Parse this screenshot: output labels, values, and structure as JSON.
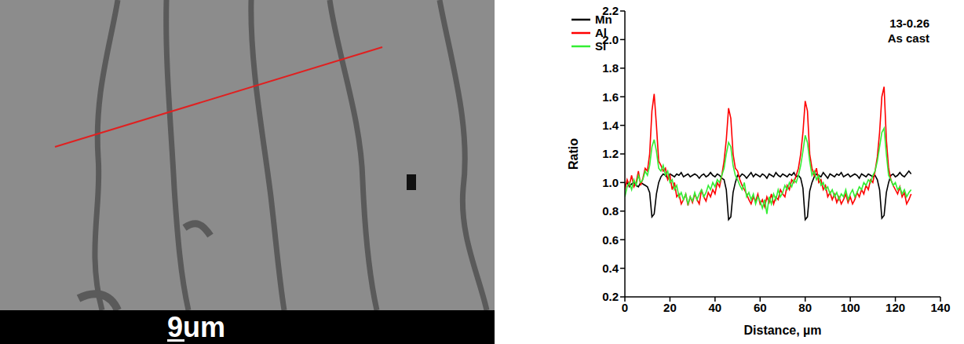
{
  "chart_data": {
    "type": "line",
    "x_label": "Distance, µm",
    "y_label": "Ratio",
    "annotations": [
      "13-0.26",
      "As cast"
    ],
    "legend": "upper left",
    "grid": false,
    "xlim": [
      0,
      140
    ],
    "xticks": [
      0,
      20,
      40,
      60,
      80,
      100,
      120,
      140
    ],
    "ylim": [
      0.2,
      2.2
    ],
    "yticks": [
      0.2,
      0.4,
      0.6,
      0.8,
      {
        "value": 1,
        "label": "1.0"
      },
      1.2,
      1.4,
      1.6,
      1.8,
      {
        "value": 2,
        "label": "2.0"
      },
      2.2
    ],
    "x": [
      0,
      1,
      2,
      3,
      4,
      5,
      6,
      7,
      8,
      9,
      10,
      11,
      12,
      13,
      14,
      15,
      16,
      17,
      18,
      19,
      20,
      21,
      22,
      23,
      24,
      25,
      26,
      27,
      28,
      29,
      30,
      31,
      32,
      33,
      34,
      35,
      36,
      37,
      38,
      39,
      40,
      41,
      42,
      43,
      44,
      45,
      46,
      47,
      48,
      49,
      50,
      51,
      52,
      53,
      54,
      55,
      56,
      57,
      58,
      59,
      60,
      61,
      62,
      63,
      64,
      65,
      66,
      67,
      68,
      69,
      70,
      71,
      72,
      73,
      74,
      75,
      76,
      77,
      78,
      79,
      80,
      81,
      82,
      83,
      84,
      85,
      86,
      87,
      88,
      89,
      90,
      91,
      92,
      93,
      94,
      95,
      96,
      97,
      98,
      99,
      100,
      101,
      102,
      103,
      104,
      105,
      106,
      107,
      108,
      109,
      110,
      111,
      112,
      113,
      114,
      115,
      116,
      117,
      118,
      119,
      120,
      121,
      122,
      123,
      124,
      125,
      126,
      127
    ],
    "series": [
      {
        "name": "Mn",
        "color": "#000000",
        "values": [
          0.98,
          1.0,
          0.97,
          0.99,
          1.0,
          0.98,
          0.97,
          1.0,
          0.99,
          0.98,
          0.97,
          0.93,
          0.76,
          0.78,
          0.92,
          1.0,
          1.04,
          1.06,
          1.05,
          1.03,
          1.06,
          1.05,
          1.04,
          1.06,
          1.05,
          1.07,
          1.04,
          1.05,
          1.06,
          1.04,
          1.05,
          1.06,
          1.05,
          1.03,
          1.05,
          1.06,
          1.04,
          1.05,
          1.07,
          1.05,
          1.04,
          1.06,
          1.05,
          1.03,
          1.02,
          0.95,
          0.74,
          0.76,
          0.93,
          1.0,
          1.05,
          1.04,
          1.06,
          1.05,
          1.03,
          1.05,
          1.07,
          1.04,
          1.06,
          1.05,
          1.04,
          1.06,
          1.05,
          1.03,
          1.06,
          1.05,
          1.04,
          1.07,
          1.05,
          1.04,
          1.06,
          1.05,
          1.04,
          1.06,
          1.05,
          1.07,
          1.04,
          1.05,
          1.03,
          0.96,
          0.74,
          0.76,
          0.94,
          1.0,
          1.04,
          1.06,
          1.05,
          1.04,
          1.07,
          1.05,
          1.03,
          1.06,
          1.05,
          1.04,
          1.06,
          1.05,
          1.07,
          1.04,
          1.05,
          1.06,
          1.04,
          1.05,
          1.06,
          1.05,
          1.03,
          1.06,
          1.05,
          1.04,
          1.06,
          1.05,
          1.04,
          1.05,
          1.02,
          0.95,
          0.75,
          0.77,
          0.93,
          1.0,
          1.05,
          1.06,
          1.04,
          1.05,
          1.07,
          1.05,
          1.04,
          1.06,
          1.08,
          1.06
        ]
      },
      {
        "name": "Al",
        "color": "#ff0000",
        "values": [
          0.95,
          1.02,
          0.98,
          1.05,
          0.97,
          1.0,
          1.08,
          0.98,
          1.03,
          1.1,
          1.08,
          1.2,
          1.5,
          1.62,
          1.4,
          1.15,
          1.12,
          1.08,
          1.1,
          1.02,
          1.05,
          0.95,
          1.0,
          0.9,
          0.92,
          0.85,
          0.88,
          0.92,
          0.84,
          0.9,
          0.86,
          0.92,
          0.88,
          0.85,
          0.95,
          0.9,
          0.87,
          0.93,
          0.9,
          0.95,
          0.92,
          1.0,
          0.97,
          1.05,
          1.15,
          1.3,
          1.52,
          1.45,
          1.2,
          1.1,
          1.08,
          1.02,
          0.98,
          0.95,
          0.92,
          0.88,
          0.85,
          0.9,
          0.87,
          0.92,
          0.85,
          0.88,
          0.83,
          0.9,
          0.86,
          0.92,
          0.85,
          0.9,
          0.88,
          0.95,
          0.92,
          0.9,
          0.98,
          0.95,
          1.02,
          1.0,
          1.05,
          1.1,
          1.2,
          1.35,
          1.57,
          1.5,
          1.2,
          1.1,
          1.05,
          1.1,
          1.0,
          1.02,
          0.95,
          0.98,
          0.9,
          0.93,
          0.88,
          0.92,
          0.86,
          0.9,
          0.85,
          0.88,
          0.92,
          0.86,
          0.9,
          0.85,
          0.88,
          0.93,
          0.9,
          0.95,
          0.92,
          0.98,
          0.95,
          1.02,
          1.0,
          1.08,
          1.18,
          1.35,
          1.6,
          1.67,
          1.3,
          1.1,
          1.02,
          0.98,
          0.95,
          0.92,
          0.97,
          0.9,
          0.93,
          0.85,
          0.88,
          0.92
        ]
      },
      {
        "name": "Si",
        "color": "#33ee33",
        "values": [
          0.9,
          0.97,
          1.0,
          0.95,
          1.02,
          0.98,
          1.05,
          1.0,
          1.02,
          1.08,
          1.05,
          1.12,
          1.25,
          1.3,
          1.22,
          1.1,
          1.08,
          1.12,
          1.05,
          1.08,
          1.0,
          1.02,
          0.95,
          0.98,
          0.9,
          0.93,
          0.88,
          0.92,
          0.85,
          0.9,
          0.87,
          0.93,
          0.88,
          0.92,
          0.95,
          0.9,
          0.93,
          0.98,
          0.95,
          1.0,
          0.97,
          1.02,
          1.0,
          1.05,
          1.1,
          1.2,
          1.28,
          1.25,
          1.12,
          1.05,
          1.02,
          0.98,
          0.95,
          1.0,
          0.9,
          0.93,
          0.88,
          0.92,
          0.85,
          0.9,
          0.87,
          0.82,
          0.88,
          0.78,
          0.9,
          0.85,
          0.92,
          0.88,
          0.95,
          0.9,
          0.93,
          0.98,
          0.95,
          1.0,
          0.97,
          1.02,
          1.0,
          1.05,
          1.12,
          1.22,
          1.33,
          1.28,
          1.15,
          1.05,
          1.08,
          1.02,
          1.05,
          0.98,
          1.0,
          0.95,
          0.97,
          0.92,
          0.95,
          0.9,
          0.93,
          0.88,
          0.92,
          0.9,
          0.95,
          0.88,
          0.92,
          0.95,
          0.9,
          0.93,
          0.97,
          0.95,
          1.0,
          0.98,
          1.02,
          1.0,
          1.05,
          1.08,
          1.15,
          1.25,
          1.35,
          1.38,
          1.2,
          1.05,
          1.02,
          0.98,
          1.0,
          0.95,
          0.97,
          0.92,
          0.95,
          0.9,
          0.93,
          0.95
        ]
      }
    ]
  },
  "micrograph": {
    "scale_bar": "9um"
  }
}
